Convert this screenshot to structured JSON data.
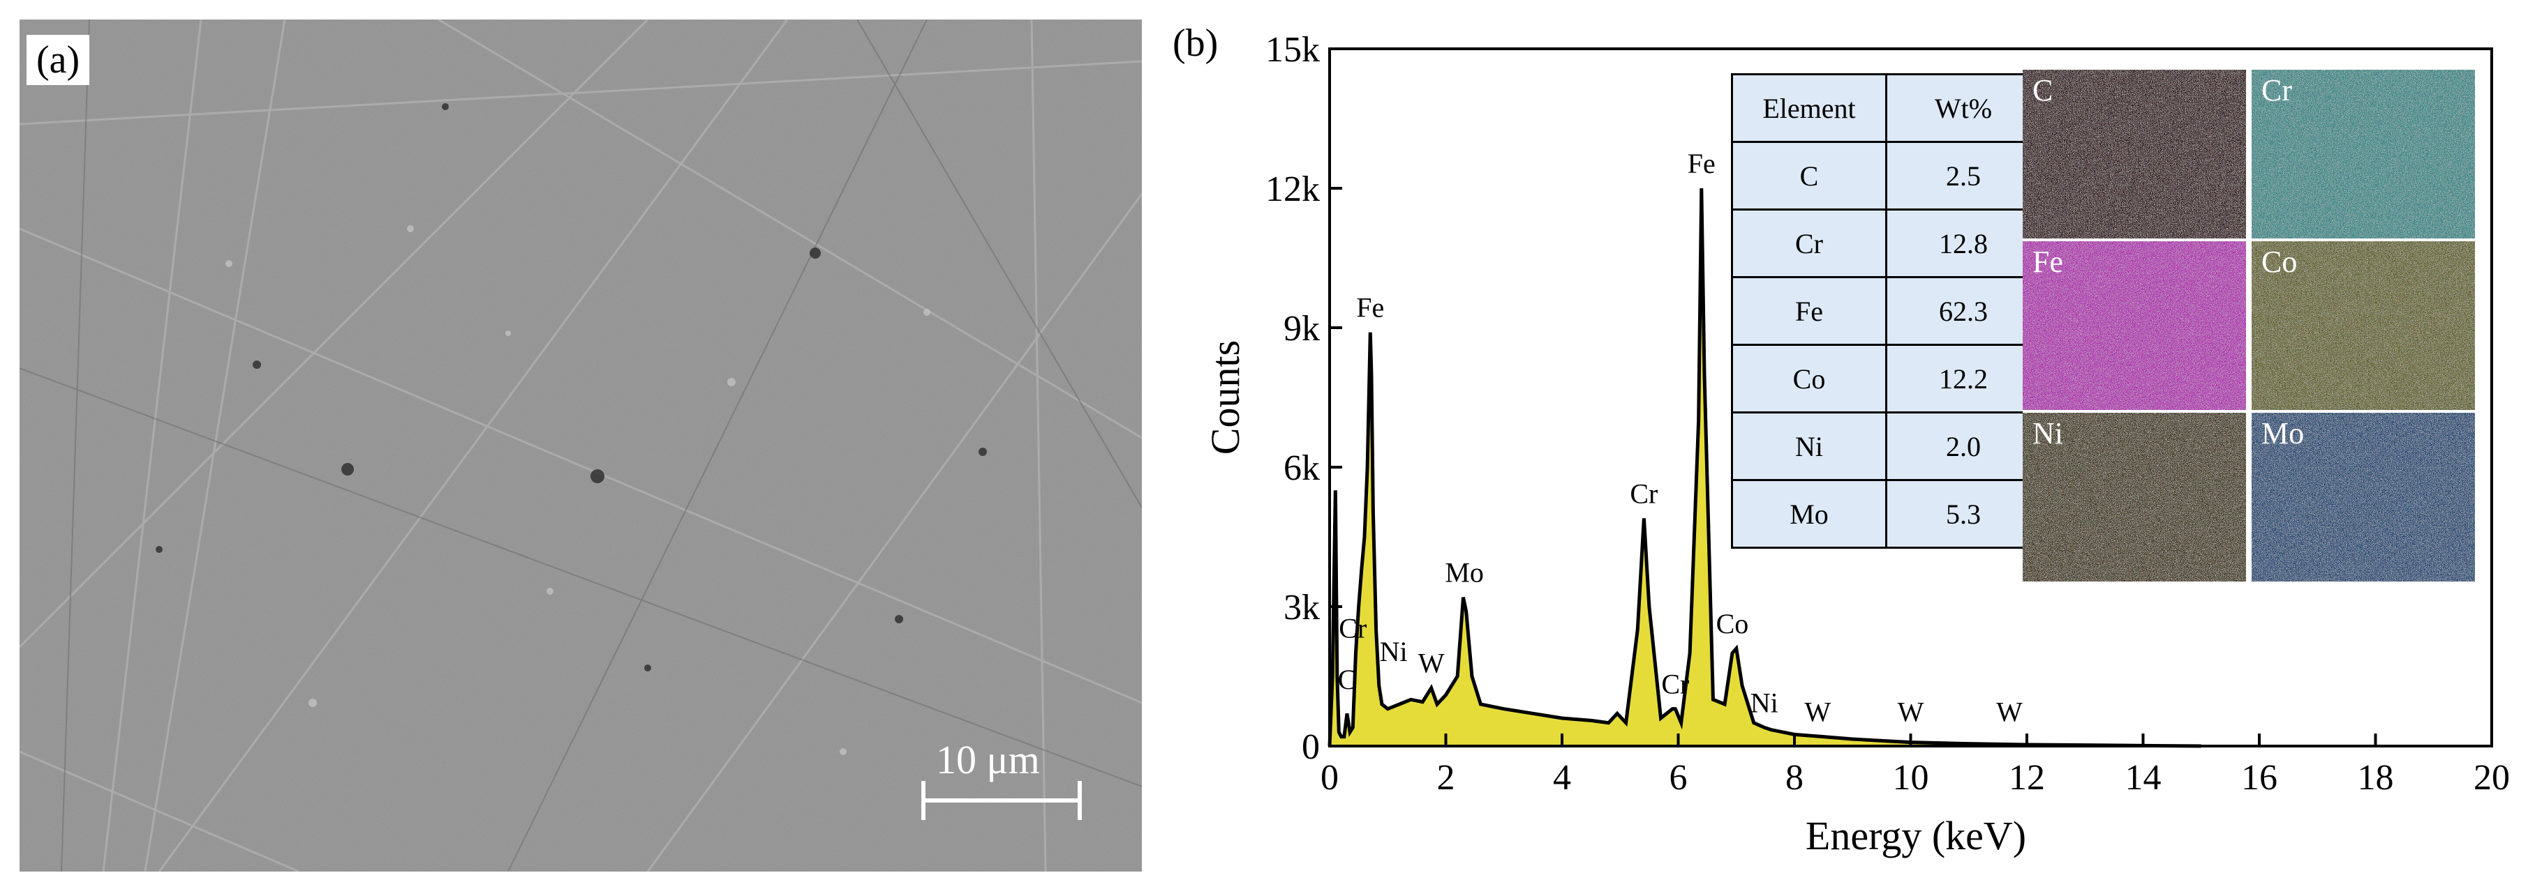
{
  "panel_a": {
    "label": "(a)",
    "scale_bar_text": "10 μm",
    "image_description_icon": "sem-micrograph"
  },
  "panel_b": {
    "label": "(b)"
  },
  "chart_data": {
    "type": "line",
    "xlabel": "Energy (keV)",
    "ylabel": "Counts",
    "xlim": [
      0,
      20
    ],
    "ylim": [
      0,
      15000
    ],
    "x_ticks": [
      "0",
      "2",
      "4",
      "6",
      "8",
      "10",
      "12",
      "14",
      "16",
      "18",
      "20"
    ],
    "y_ticks": [
      "0",
      "3k",
      "6k",
      "9k",
      "12k",
      "15k"
    ],
    "fill_color": "#e5dc3a",
    "series": [
      {
        "x": [
          0.0,
          0.05,
          0.1,
          0.13,
          0.16,
          0.2,
          0.25,
          0.3,
          0.35,
          0.4,
          0.45,
          0.5,
          0.55,
          0.6,
          0.65,
          0.7,
          0.72,
          0.75,
          0.8,
          0.85,
          0.9,
          1.0,
          1.2,
          1.4,
          1.6,
          1.75,
          1.85,
          2.0,
          2.2,
          2.3,
          2.35,
          2.45,
          2.6,
          3.0,
          3.5,
          4.0,
          4.5,
          4.8,
          4.95,
          5.1,
          5.3,
          5.41,
          5.5,
          5.7,
          5.9,
          5.95,
          6.05,
          6.2,
          6.35,
          6.4,
          6.45,
          6.6,
          6.8,
          6.93,
          7.0,
          7.1,
          7.3,
          7.48,
          7.6,
          8.0,
          8.5,
          9.0,
          10.0,
          11.0,
          12.0,
          13.0,
          14.0,
          15.0
        ],
        "y": [
          0,
          1500,
          5500,
          1500,
          300,
          200,
          200,
          700,
          300,
          400,
          2000,
          3000,
          3800,
          4500,
          6000,
          8900,
          8000,
          5000,
          2500,
          1300,
          900,
          800,
          900,
          1000,
          950,
          1250,
          900,
          1100,
          1500,
          3200,
          2900,
          1500,
          900,
          800,
          700,
          600,
          550,
          500,
          700,
          500,
          2500,
          4900,
          3000,
          600,
          800,
          800,
          500,
          2000,
          7000,
          12000,
          8000,
          1000,
          900,
          2000,
          2100,
          1300,
          500,
          400,
          350,
          250,
          200,
          150,
          80,
          50,
          30,
          20,
          10,
          0
        ]
      }
    ],
    "peak_labels": [
      {
        "text": "Fe",
        "x": 0.7,
        "y": 8900
      },
      {
        "text": "Cr",
        "x": 0.4,
        "y": 2000
      },
      {
        "text": "C",
        "x": 0.3,
        "y": 900
      },
      {
        "text": "Ni",
        "x": 1.1,
        "y": 1500
      },
      {
        "text": "W",
        "x": 1.75,
        "y": 1250
      },
      {
        "text": "Mo",
        "x": 2.32,
        "y": 3200
      },
      {
        "text": "Cr",
        "x": 5.41,
        "y": 4900
      },
      {
        "text": "Cr",
        "x": 5.95,
        "y": 800
      },
      {
        "text": "Fe",
        "x": 6.4,
        "y": 12000
      },
      {
        "text": "Co",
        "x": 6.93,
        "y": 2100
      },
      {
        "text": "Ni",
        "x": 7.48,
        "y": 400
      },
      {
        "text": "W",
        "x": 8.4,
        "y": 200
      },
      {
        "text": "W",
        "x": 10.0,
        "y": 200
      },
      {
        "text": "W",
        "x": 11.7,
        "y": 200
      }
    ]
  },
  "table": {
    "headers": [
      "Element",
      "Wt%"
    ],
    "rows": [
      [
        "C",
        "2.5"
      ],
      [
        "Cr",
        "12.8"
      ],
      [
        "Fe",
        "62.3"
      ],
      [
        "Co",
        "12.2"
      ],
      [
        "Ni",
        "2.0"
      ],
      [
        "Mo",
        "5.3"
      ]
    ]
  },
  "element_maps": [
    {
      "label": "C",
      "color": "#5a0d0d",
      "base": "#1a0606"
    },
    {
      "label": "Cr",
      "color": "#3bb3b3",
      "base": "#1f7a7a"
    },
    {
      "label": "Fe",
      "color": "#e21fe2",
      "base": "#b016b0"
    },
    {
      "label": "Co",
      "color": "#8f8f22",
      "base": "#4f4f14"
    },
    {
      "label": "Ni",
      "color": "#6d5a1c",
      "base": "#2b230b"
    },
    {
      "label": "Mo",
      "color": "#1e5aa8",
      "base": "#0e3264"
    }
  ]
}
